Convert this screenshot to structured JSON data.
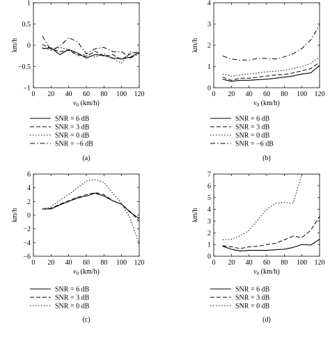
{
  "chart_data": [
    {
      "type": "line",
      "panel_label": "(a)",
      "xlabel_var": "v",
      "xlabel_sub": "0",
      "xlabel_unit": " (km/h)",
      "ylabel": "km/h",
      "xlim": [
        0,
        120
      ],
      "ylim": [
        -1,
        1
      ],
      "xticks": [
        "0",
        "20",
        "40",
        "60",
        "80",
        "100",
        "120"
      ],
      "yticks": [
        "-1",
        "-0.5",
        "0",
        "0.5",
        "1"
      ],
      "x": [
        10,
        20,
        30,
        40,
        50,
        60,
        70,
        80,
        90,
        100,
        110,
        120
      ],
      "series": [
        {
          "name": "SNR = 6 dB",
          "style": "solid",
          "values": [
            -0.08,
            -0.06,
            -0.22,
            -0.1,
            -0.18,
            -0.3,
            -0.22,
            -0.24,
            -0.3,
            -0.32,
            -0.28,
            -0.17
          ]
        },
        {
          "name": "SNR = 3 dB",
          "style": "dashed",
          "values": [
            0.02,
            -0.08,
            -0.15,
            -0.12,
            -0.22,
            -0.26,
            -0.14,
            -0.26,
            -0.22,
            -0.34,
            -0.2,
            -0.15
          ]
        },
        {
          "name": "SNR = 0 dB",
          "style": "dotted",
          "values": [
            -0.05,
            -0.12,
            -0.05,
            -0.1,
            -0.25,
            -0.2,
            -0.28,
            -0.2,
            -0.32,
            -0.42,
            -0.15,
            -0.2
          ]
        },
        {
          "name": "SNR = −6 dB",
          "style": "dashdot",
          "values": [
            0.22,
            -0.12,
            -0.02,
            0.18,
            0.08,
            -0.2,
            -0.08,
            -0.05,
            -0.15,
            -0.15,
            -0.3,
            -0.2
          ]
        }
      ]
    },
    {
      "type": "line",
      "panel_label": "(b)",
      "xlabel_var": "v",
      "xlabel_sub": "0",
      "xlabel_unit": " (km/h)",
      "ylabel": "km/h",
      "xlim": [
        0,
        120
      ],
      "ylim": [
        0,
        4
      ],
      "xticks": [
        "0",
        "20",
        "40",
        "60",
        "80",
        "100",
        "120"
      ],
      "yticks": [
        "0",
        "1",
        "2",
        "3",
        "4"
      ],
      "x": [
        10,
        20,
        30,
        40,
        50,
        60,
        70,
        80,
        90,
        100,
        110,
        120
      ],
      "series": [
        {
          "name": "SNR = 6 dB",
          "style": "solid",
          "values": [
            0.4,
            0.3,
            0.35,
            0.35,
            0.38,
            0.4,
            0.45,
            0.5,
            0.55,
            0.65,
            0.7,
            1.05
          ]
        },
        {
          "name": "SNR = 3 dB",
          "style": "dashed",
          "values": [
            0.5,
            0.35,
            0.45,
            0.45,
            0.5,
            0.55,
            0.6,
            0.62,
            0.7,
            0.8,
            0.9,
            1.2
          ]
        },
        {
          "name": "SNR = 0 dB",
          "style": "dotted",
          "values": [
            0.65,
            0.55,
            0.6,
            0.65,
            0.7,
            0.75,
            0.78,
            0.82,
            0.9,
            1.0,
            1.15,
            1.45
          ]
        },
        {
          "name": "SNR = −6 dB",
          "style": "dashdot",
          "values": [
            1.5,
            1.35,
            1.3,
            1.3,
            1.38,
            1.38,
            1.35,
            1.45,
            1.6,
            1.85,
            2.25,
            2.95
          ]
        }
      ]
    },
    {
      "type": "line",
      "panel_label": "(c)",
      "xlabel_var": "v",
      "xlabel_sub": "0",
      "xlabel_unit": " (km/h)",
      "ylabel": "km/h",
      "xlim": [
        0,
        120
      ],
      "ylim": [
        -6,
        6
      ],
      "xticks": [
        "0",
        "20",
        "40",
        "60",
        "80",
        "100",
        "120"
      ],
      "yticks": [
        "-6",
        "-4",
        "-2",
        "0",
        "2",
        "4",
        "6"
      ],
      "x": [
        10,
        20,
        30,
        40,
        50,
        60,
        70,
        80,
        90,
        100,
        110,
        120
      ],
      "series": [
        {
          "name": "SNR = 6 dB",
          "style": "solid",
          "values": [
            0.9,
            0.9,
            1.5,
            2.0,
            2.5,
            2.8,
            3.2,
            2.8,
            2.1,
            1.6,
            0.4,
            -0.5
          ]
        },
        {
          "name": "SNR = 3 dB",
          "style": "dashed",
          "values": [
            0.9,
            1.0,
            1.6,
            2.1,
            2.6,
            3.0,
            3.3,
            3.0,
            2.1,
            1.6,
            0.5,
            -0.9
          ]
        },
        {
          "name": "SNR = 0 dB",
          "style": "dotted",
          "values": [
            0.9,
            1.2,
            2.2,
            3.0,
            4.0,
            5.0,
            5.2,
            4.8,
            3.2,
            1.7,
            -0.5,
            -4.3
          ]
        }
      ]
    },
    {
      "type": "line",
      "panel_label": "(d)",
      "xlabel_var": "v",
      "xlabel_sub": "0",
      "xlabel_unit": " (km/h)",
      "ylabel": "km/h",
      "xlim": [
        0,
        120
      ],
      "ylim": [
        0,
        7
      ],
      "xticks": [
        "0",
        "20",
        "40",
        "60",
        "80",
        "100",
        "120"
      ],
      "yticks": [
        "0",
        "1",
        "2",
        "3",
        "4",
        "5",
        "6",
        "7"
      ],
      "x": [
        10,
        20,
        30,
        40,
        50,
        60,
        70,
        80,
        90,
        100,
        110,
        120
      ],
      "series": [
        {
          "name": "SNR = 6 dB",
          "style": "solid",
          "values": [
            0.85,
            0.6,
            0.45,
            0.5,
            0.5,
            0.5,
            0.55,
            0.6,
            0.75,
            1.0,
            0.95,
            1.45
          ]
        },
        {
          "name": "SNR = 3 dB",
          "style": "dashed",
          "values": [
            0.9,
            0.8,
            0.65,
            0.8,
            0.85,
            1.0,
            1.1,
            1.4,
            1.7,
            1.6,
            2.2,
            3.4
          ]
        },
        {
          "name": "SNR = 0 dB",
          "style": "dotted",
          "values": [
            1.4,
            1.45,
            1.75,
            2.2,
            3.1,
            4.0,
            4.5,
            4.6,
            4.5,
            7.0,
            7.0,
            7.0
          ]
        }
      ]
    }
  ]
}
